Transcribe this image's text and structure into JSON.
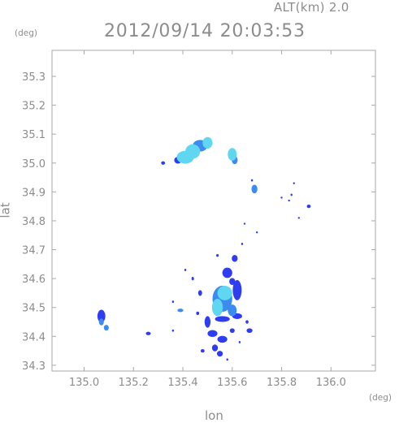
{
  "header": {
    "altitude_label": "ALT(km) 2.0",
    "datetime": "2012/09/14 20:03:53"
  },
  "colors": {
    "frame": "#a8a8a8",
    "text": "#8c8c8c",
    "echo_low": "#2f3df0",
    "echo_mid": "#3c8cf0",
    "echo_high": "#5fd7f0"
  },
  "chart_data": {
    "type": "heatmap",
    "title": "2012/09/14 20:03:53",
    "subtitle": "ALT(km) 2.0",
    "xlabel": "lon",
    "ylabel": "lat",
    "x_unit": "(deg)",
    "y_unit": "(deg)",
    "xlim": [
      134.87,
      136.18
    ],
    "ylim": [
      34.28,
      35.39
    ],
    "x_ticks": [
      135.0,
      135.2,
      135.4,
      135.6,
      135.8,
      136.0
    ],
    "x_tick_labels": [
      "135.0",
      "135.2",
      "135.4",
      "135.6",
      "135.8",
      "136.0"
    ],
    "y_ticks": [
      34.3,
      34.4,
      34.5,
      34.6,
      34.7,
      34.8,
      34.9,
      35.0,
      35.1,
      35.2,
      35.3
    ],
    "y_tick_labels": [
      "34.3",
      "34.4",
      "34.5",
      "34.6",
      "34.7",
      "34.8",
      "34.9",
      "35.0",
      "35.1",
      "35.2",
      "35.3"
    ],
    "grid": false,
    "echo_cells": [
      {
        "lon": 135.41,
        "lat": 35.02,
        "rx": 0.035,
        "ry": 0.022,
        "intensity": "high"
      },
      {
        "lon": 135.44,
        "lat": 35.04,
        "rx": 0.03,
        "ry": 0.025,
        "intensity": "high"
      },
      {
        "lon": 135.47,
        "lat": 35.06,
        "rx": 0.03,
        "ry": 0.02,
        "intensity": "mid"
      },
      {
        "lon": 135.5,
        "lat": 35.07,
        "rx": 0.02,
        "ry": 0.02,
        "intensity": "high"
      },
      {
        "lon": 135.38,
        "lat": 35.01,
        "rx": 0.015,
        "ry": 0.012,
        "intensity": "low"
      },
      {
        "lon": 135.32,
        "lat": 35.0,
        "rx": 0.008,
        "ry": 0.006,
        "intensity": "low"
      },
      {
        "lon": 135.6,
        "lat": 35.03,
        "rx": 0.018,
        "ry": 0.022,
        "intensity": "high"
      },
      {
        "lon": 135.61,
        "lat": 35.01,
        "rx": 0.012,
        "ry": 0.014,
        "intensity": "mid"
      },
      {
        "lon": 135.69,
        "lat": 34.91,
        "rx": 0.012,
        "ry": 0.015,
        "intensity": "mid"
      },
      {
        "lon": 135.68,
        "lat": 34.94,
        "rx": 0.004,
        "ry": 0.004,
        "intensity": "low"
      },
      {
        "lon": 135.85,
        "lat": 34.93,
        "rx": 0.003,
        "ry": 0.003,
        "intensity": "low"
      },
      {
        "lon": 135.84,
        "lat": 34.89,
        "rx": 0.004,
        "ry": 0.004,
        "intensity": "low"
      },
      {
        "lon": 135.83,
        "lat": 34.87,
        "rx": 0.004,
        "ry": 0.003,
        "intensity": "low"
      },
      {
        "lon": 135.91,
        "lat": 34.85,
        "rx": 0.008,
        "ry": 0.006,
        "intensity": "low"
      },
      {
        "lon": 135.8,
        "lat": 34.88,
        "rx": 0.003,
        "ry": 0.003,
        "intensity": "low"
      },
      {
        "lon": 135.87,
        "lat": 34.81,
        "rx": 0.003,
        "ry": 0.003,
        "intensity": "low"
      },
      {
        "lon": 135.65,
        "lat": 34.79,
        "rx": 0.003,
        "ry": 0.003,
        "intensity": "low"
      },
      {
        "lon": 135.7,
        "lat": 34.76,
        "rx": 0.003,
        "ry": 0.003,
        "intensity": "low"
      },
      {
        "lon": 135.64,
        "lat": 34.72,
        "rx": 0.003,
        "ry": 0.004,
        "intensity": "low"
      },
      {
        "lon": 135.61,
        "lat": 34.67,
        "rx": 0.012,
        "ry": 0.012,
        "intensity": "low"
      },
      {
        "lon": 135.58,
        "lat": 34.62,
        "rx": 0.02,
        "ry": 0.018,
        "intensity": "low"
      },
      {
        "lon": 135.6,
        "lat": 34.59,
        "rx": 0.012,
        "ry": 0.012,
        "intensity": "low"
      },
      {
        "lon": 135.54,
        "lat": 34.68,
        "rx": 0.005,
        "ry": 0.005,
        "intensity": "low"
      },
      {
        "lon": 135.56,
        "lat": 34.53,
        "rx": 0.04,
        "ry": 0.045,
        "intensity": "mid"
      },
      {
        "lon": 135.57,
        "lat": 34.55,
        "rx": 0.03,
        "ry": 0.025,
        "intensity": "high"
      },
      {
        "lon": 135.54,
        "lat": 34.5,
        "rx": 0.022,
        "ry": 0.03,
        "intensity": "high"
      },
      {
        "lon": 135.6,
        "lat": 34.49,
        "rx": 0.018,
        "ry": 0.02,
        "intensity": "mid"
      },
      {
        "lon": 135.62,
        "lat": 34.56,
        "rx": 0.018,
        "ry": 0.035,
        "intensity": "low"
      },
      {
        "lon": 135.5,
        "lat": 34.45,
        "rx": 0.012,
        "ry": 0.02,
        "intensity": "low"
      },
      {
        "lon": 135.47,
        "lat": 34.55,
        "rx": 0.008,
        "ry": 0.01,
        "intensity": "low"
      },
      {
        "lon": 135.44,
        "lat": 34.6,
        "rx": 0.005,
        "ry": 0.006,
        "intensity": "low"
      },
      {
        "lon": 135.41,
        "lat": 34.63,
        "rx": 0.004,
        "ry": 0.004,
        "intensity": "low"
      },
      {
        "lon": 135.36,
        "lat": 34.52,
        "rx": 0.004,
        "ry": 0.004,
        "intensity": "low"
      },
      {
        "lon": 135.39,
        "lat": 34.49,
        "rx": 0.012,
        "ry": 0.006,
        "intensity": "mid"
      },
      {
        "lon": 135.46,
        "lat": 34.48,
        "rx": 0.006,
        "ry": 0.006,
        "intensity": "low"
      },
      {
        "lon": 135.56,
        "lat": 34.46,
        "rx": 0.03,
        "ry": 0.01,
        "intensity": "low"
      },
      {
        "lon": 135.62,
        "lat": 34.47,
        "rx": 0.02,
        "ry": 0.01,
        "intensity": "low"
      },
      {
        "lon": 135.66,
        "lat": 34.45,
        "rx": 0.006,
        "ry": 0.006,
        "intensity": "low"
      },
      {
        "lon": 135.52,
        "lat": 34.41,
        "rx": 0.02,
        "ry": 0.012,
        "intensity": "low"
      },
      {
        "lon": 135.56,
        "lat": 34.39,
        "rx": 0.02,
        "ry": 0.012,
        "intensity": "low"
      },
      {
        "lon": 135.53,
        "lat": 34.36,
        "rx": 0.012,
        "ry": 0.012,
        "intensity": "low"
      },
      {
        "lon": 135.55,
        "lat": 34.34,
        "rx": 0.012,
        "ry": 0.01,
        "intensity": "low"
      },
      {
        "lon": 135.48,
        "lat": 34.35,
        "rx": 0.008,
        "ry": 0.006,
        "intensity": "low"
      },
      {
        "lon": 135.6,
        "lat": 34.42,
        "rx": 0.01,
        "ry": 0.008,
        "intensity": "low"
      },
      {
        "lon": 135.67,
        "lat": 34.42,
        "rx": 0.012,
        "ry": 0.008,
        "intensity": "low"
      },
      {
        "lon": 135.63,
        "lat": 34.38,
        "rx": 0.004,
        "ry": 0.004,
        "intensity": "low"
      },
      {
        "lon": 135.58,
        "lat": 34.32,
        "rx": 0.004,
        "ry": 0.004,
        "intensity": "low"
      },
      {
        "lon": 135.36,
        "lat": 34.42,
        "rx": 0.004,
        "ry": 0.004,
        "intensity": "low"
      },
      {
        "lon": 135.26,
        "lat": 34.41,
        "rx": 0.01,
        "ry": 0.006,
        "intensity": "low"
      },
      {
        "lon": 135.07,
        "lat": 34.47,
        "rx": 0.016,
        "ry": 0.022,
        "intensity": "low"
      },
      {
        "lon": 135.07,
        "lat": 34.45,
        "rx": 0.01,
        "ry": 0.012,
        "intensity": "mid"
      },
      {
        "lon": 135.09,
        "lat": 34.43,
        "rx": 0.01,
        "ry": 0.01,
        "intensity": "mid"
      }
    ]
  }
}
